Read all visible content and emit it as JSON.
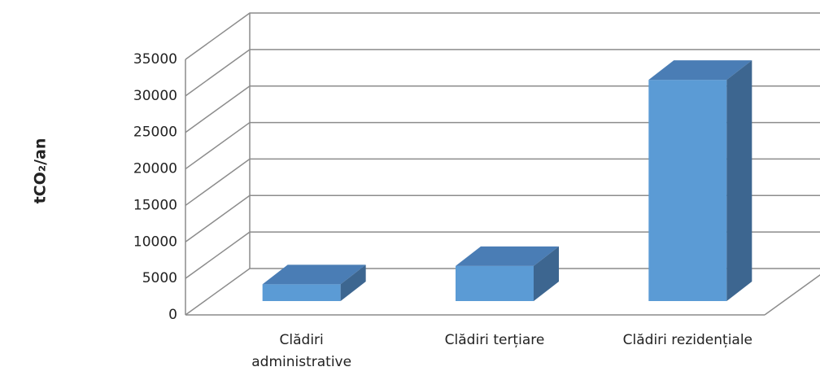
{
  "chart_data": {
    "type": "bar3d",
    "y_label": "tCO₂/an",
    "categories": [
      "Clădiri administrative",
      "Clădiri terțiare",
      "Clădiri rezidențiale"
    ],
    "values": [
      2300,
      4800,
      30300
    ],
    "color": "#5b9bd5",
    "ylim": [
      0,
      35000
    ],
    "yticks": [
      0,
      5000,
      10000,
      15000,
      20000,
      25000,
      30000,
      35000
    ],
    "grid": true
  }
}
